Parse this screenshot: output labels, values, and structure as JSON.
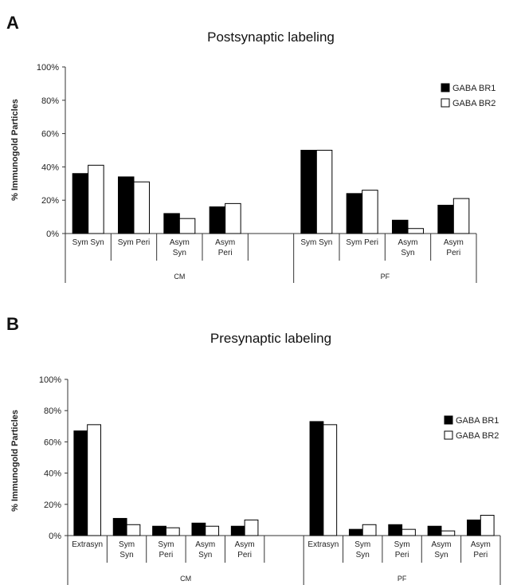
{
  "chart_data": [
    {
      "type": "bar",
      "panel": "A",
      "title": "Postsynaptic labeling",
      "ylabel": "% Immunogold Particles",
      "ylim": [
        0,
        100
      ],
      "yticks": [
        "0%",
        "20%",
        "40%",
        "60%",
        "80%",
        "100%"
      ],
      "grid": false,
      "legend_position": "top-right",
      "categories": [
        {
          "label": [
            "Sym Syn"
          ],
          "group": "CM"
        },
        {
          "label": [
            "Sym Peri"
          ],
          "group": "CM"
        },
        {
          "label": [
            "Asym",
            "Syn"
          ],
          "group": "CM"
        },
        {
          "label": [
            "Asym",
            "Peri"
          ],
          "group": "CM"
        },
        {
          "label": [
            ""
          ],
          "group": "CM"
        },
        {
          "label": [
            "Sym Syn"
          ],
          "group": "PF"
        },
        {
          "label": [
            "Sym Peri"
          ],
          "group": "PF"
        },
        {
          "label": [
            "Asym",
            "Syn"
          ],
          "group": "PF"
        },
        {
          "label": [
            "Asym",
            "Peri"
          ],
          "group": "PF"
        }
      ],
      "groups": [
        "CM",
        "PF"
      ],
      "series": [
        {
          "name": "GABA BR1",
          "color": "#000000",
          "values": [
            36,
            34,
            12,
            16,
            null,
            50,
            24,
            8,
            17
          ]
        },
        {
          "name": "GABA BR2",
          "color": "#ffffff",
          "values": [
            41,
            31,
            9,
            18,
            null,
            50,
            26,
            3,
            21
          ]
        }
      ]
    },
    {
      "type": "bar",
      "panel": "B",
      "title": "Presynaptic labeling",
      "ylabel": "% Immunogold Particles",
      "ylim": [
        0,
        100
      ],
      "yticks": [
        "0%",
        "20%",
        "40%",
        "60%",
        "80%",
        "100%"
      ],
      "grid": false,
      "legend_position": "top-right",
      "categories": [
        {
          "label": [
            "Extrasyn"
          ],
          "group": "CM"
        },
        {
          "label": [
            "Sym",
            "Syn"
          ],
          "group": "CM"
        },
        {
          "label": [
            "Sym",
            "Peri"
          ],
          "group": "CM"
        },
        {
          "label": [
            "Asym",
            "Syn"
          ],
          "group": "CM"
        },
        {
          "label": [
            "Asym",
            "Peri"
          ],
          "group": "CM"
        },
        {
          "label": [
            ""
          ],
          "group": "CM"
        },
        {
          "label": [
            "Extrasyn"
          ],
          "group": "PF"
        },
        {
          "label": [
            "Sym",
            "Syn"
          ],
          "group": "PF"
        },
        {
          "label": [
            "Sym",
            "Peri"
          ],
          "group": "PF"
        },
        {
          "label": [
            "Asym",
            "Syn"
          ],
          "group": "PF"
        },
        {
          "label": [
            "Asym",
            "Peri"
          ],
          "group": "PF"
        }
      ],
      "groups": [
        "CM",
        "PF"
      ],
      "series": [
        {
          "name": "GABA BR1",
          "color": "#000000",
          "values": [
            67,
            11,
            6,
            8,
            6,
            null,
            73,
            4,
            7,
            6,
            10
          ]
        },
        {
          "name": "GABA BR2",
          "color": "#ffffff",
          "values": [
            71,
            7,
            5,
            6,
            10,
            null,
            71,
            7,
            4,
            3,
            13
          ]
        }
      ]
    }
  ]
}
